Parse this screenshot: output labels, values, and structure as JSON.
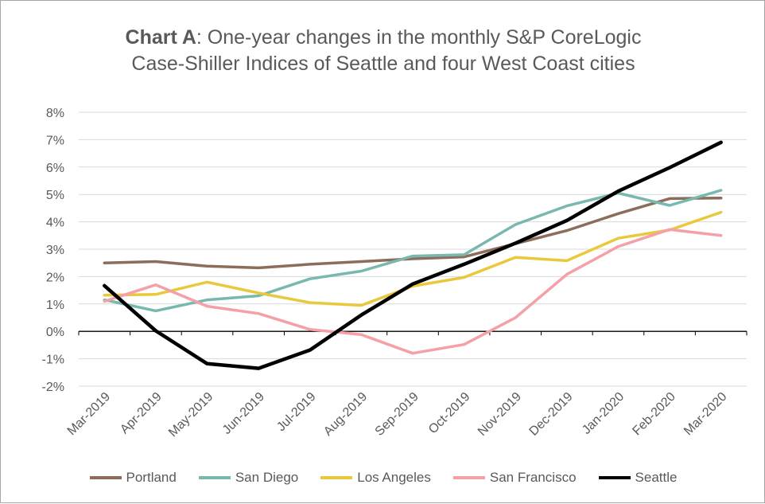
{
  "title": {
    "bold": "Chart A",
    "rest_line1": ": One-year changes in the monthly S&P CoreLogic",
    "line2": "Case-Shiller Indices of Seattle and four West Coast cities"
  },
  "chart_data": {
    "type": "line",
    "categories": [
      "Mar-2019",
      "Apr-2019",
      "May-2019",
      "Jun-2019",
      "Jul-2019",
      "Aug-2019",
      "Sep-2019",
      "Oct-2019",
      "Nov-2019",
      "Dec-2019",
      "Jan-2020",
      "Feb-2020",
      "Mar-2020"
    ],
    "y_ticks": [
      "8%",
      "7%",
      "6%",
      "5%",
      "4%",
      "3%",
      "2%",
      "1%",
      "0%",
      "-1%",
      "-2%"
    ],
    "ylim": [
      -2,
      8
    ],
    "grid": true,
    "legend_position": "bottom",
    "series": [
      {
        "name": "Portland",
        "color": "#8c6d5a",
        "values": [
          2.5,
          2.55,
          2.38,
          2.32,
          2.45,
          2.55,
          2.65,
          2.72,
          3.2,
          3.68,
          4.3,
          4.85,
          4.87
        ]
      },
      {
        "name": "San Diego",
        "color": "#79b8ae",
        "values": [
          1.15,
          0.75,
          1.15,
          1.3,
          1.92,
          2.2,
          2.75,
          2.8,
          3.9,
          4.58,
          5.05,
          4.6,
          5.15
        ]
      },
      {
        "name": "Los Angeles",
        "color": "#e9c93b",
        "values": [
          1.32,
          1.35,
          1.8,
          1.4,
          1.05,
          0.95,
          1.65,
          1.97,
          2.7,
          2.58,
          3.4,
          3.7,
          4.35
        ]
      },
      {
        "name": "San Francisco",
        "color": "#f4a0a8",
        "values": [
          1.1,
          1.7,
          0.92,
          0.65,
          0.07,
          -0.12,
          -0.8,
          -0.48,
          0.5,
          2.08,
          3.1,
          3.72,
          3.5
        ]
      },
      {
        "name": "Seattle",
        "color": "#000000",
        "values": [
          1.67,
          0.02,
          -1.18,
          -1.35,
          -0.68,
          0.6,
          1.73,
          2.45,
          3.22,
          4.05,
          5.12,
          5.98,
          6.9
        ]
      }
    ]
  }
}
